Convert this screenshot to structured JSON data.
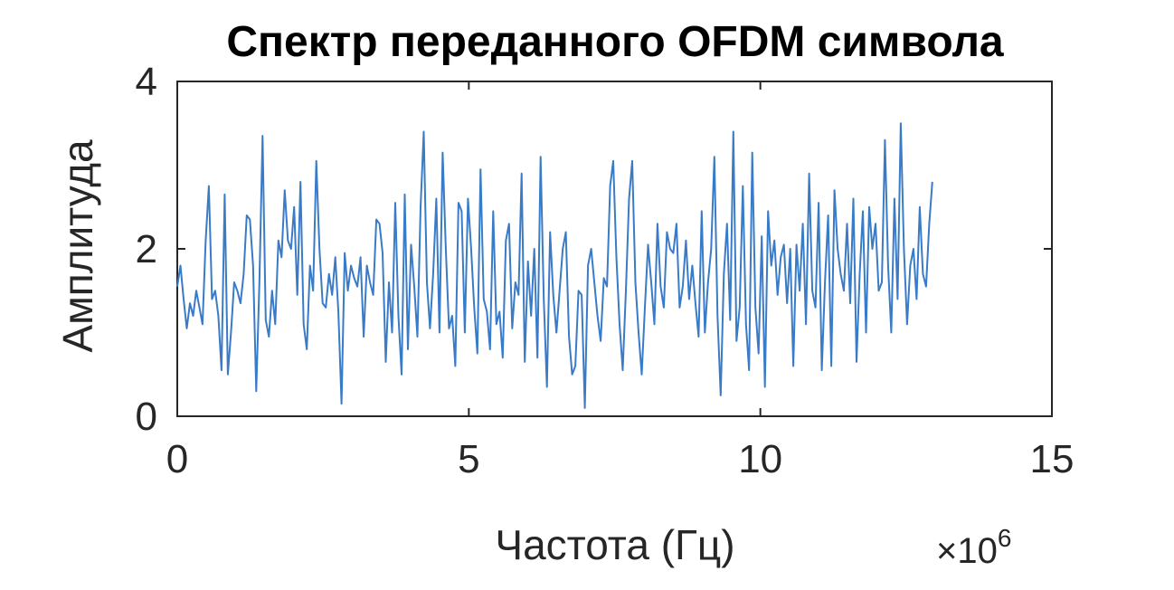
{
  "chart_data": {
    "type": "line",
    "title": "Спектр переданного OFDM символа",
    "xlabel": "Частота (Гц)",
    "ylabel": "Амплитуда",
    "x_multiplier": "×10",
    "x_multiplier_exp": "6",
    "xlim": [
      0,
      15
    ],
    "ylim": [
      0,
      4
    ],
    "xticks": [
      0,
      5,
      10,
      15
    ],
    "xtick_labels": [
      "0",
      "5",
      "10",
      "15"
    ],
    "yticks": [
      0,
      2,
      4
    ],
    "ytick_labels": [
      "0",
      "2",
      "4"
    ],
    "grid": false,
    "line_color": "#3a7bc8",
    "series": [
      {
        "x_range": [
          0,
          12.95
        ],
        "values": [
          1.55,
          1.8,
          1.4,
          1.05,
          1.35,
          1.2,
          1.5,
          1.3,
          1.1,
          2.1,
          2.75,
          1.4,
          1.5,
          1.2,
          0.55,
          2.65,
          0.5,
          1.0,
          1.6,
          1.5,
          1.35,
          1.7,
          2.4,
          2.35,
          1.8,
          0.3,
          1.6,
          3.35,
          1.15,
          0.95,
          1.5,
          1.1,
          2.1,
          1.9,
          2.7,
          2.1,
          2.0,
          2.5,
          1.45,
          2.8,
          1.1,
          0.8,
          1.8,
          1.5,
          3.05,
          2.0,
          1.35,
          1.3,
          1.7,
          1.45,
          1.9,
          1.25,
          0.15,
          1.95,
          1.5,
          1.8,
          1.65,
          1.55,
          1.9,
          0.95,
          1.8,
          1.6,
          1.45,
          2.35,
          2.3,
          1.95,
          0.65,
          1.6,
          1.0,
          2.55,
          1.2,
          0.5,
          2.65,
          0.8,
          2.05,
          1.55,
          0.95,
          2.5,
          3.4,
          1.6,
          1.05,
          1.7,
          2.6,
          1.0,
          3.15,
          2.0,
          1.05,
          1.2,
          0.6,
          2.55,
          2.45,
          1.0,
          2.6,
          2.0,
          1.3,
          0.75,
          2.95,
          1.4,
          1.25,
          0.8,
          2.45,
          1.1,
          1.25,
          0.7,
          2.1,
          2.3,
          1.05,
          1.6,
          1.45,
          2.9,
          0.65,
          1.85,
          1.2,
          2.0,
          0.7,
          3.1,
          1.4,
          0.35,
          2.2,
          1.45,
          1.0,
          1.5,
          2.0,
          2.2,
          0.95,
          0.5,
          0.6,
          1.5,
          1.45,
          0.1,
          1.8,
          2.0,
          1.6,
          1.2,
          0.9,
          1.65,
          1.55,
          2.75,
          3.05,
          1.9,
          1.1,
          0.55,
          1.5,
          2.6,
          3.05,
          1.6,
          1.0,
          0.5,
          1.3,
          2.05,
          1.6,
          1.1,
          2.3,
          1.55,
          1.3,
          2.2,
          2.0,
          1.95,
          2.3,
          1.3,
          1.55,
          2.1,
          1.4,
          1.8,
          1.35,
          0.95,
          2.45,
          1.0,
          1.6,
          2.0,
          3.1,
          1.2,
          0.25,
          1.7,
          2.3,
          1.15,
          3.4,
          0.9,
          1.3,
          2.75,
          1.1,
          0.55,
          3.15,
          1.3,
          0.75,
          2.15,
          0.35,
          2.45,
          1.8,
          2.1,
          1.45,
          1.9,
          2.05,
          1.35,
          2.0,
          0.6,
          2.05,
          1.5,
          2.3,
          1.1,
          2.9,
          1.5,
          1.3,
          2.55,
          0.55,
          1.6,
          2.4,
          0.6,
          2.7,
          2.0,
          1.7,
          1.5,
          2.3,
          1.35,
          2.6,
          0.65,
          1.7,
          2.45,
          1.0,
          2.5,
          2.0,
          2.3,
          1.5,
          1.6,
          3.3,
          1.8,
          1.0,
          2.6,
          1.4,
          3.5,
          2.0,
          1.1,
          1.8,
          2.0,
          1.4,
          2.5,
          1.7,
          1.55,
          2.3,
          2.8
        ]
      }
    ]
  }
}
